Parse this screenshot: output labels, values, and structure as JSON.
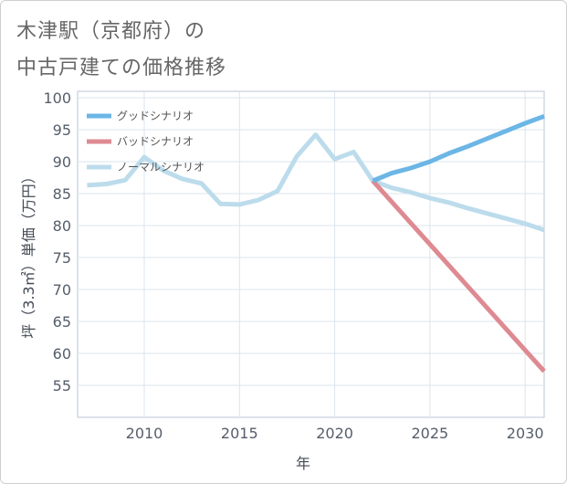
{
  "title_line1": "木津駅（京都府）の",
  "title_line2": "中古戸建ての価格推移",
  "chart_data": {
    "type": "line",
    "title": "木津駅（京都府）の中古戸建ての価格推移",
    "xlabel": "年",
    "ylabel": "坪（3.3㎡）単価（万円）",
    "xlim": [
      2006.5,
      2031
    ],
    "ylim": [
      50,
      101
    ],
    "xticks": [
      2010,
      2015,
      2020,
      2025,
      2030
    ],
    "yticks": [
      55,
      60,
      65,
      70,
      75,
      80,
      85,
      90,
      95,
      100
    ],
    "grid": true,
    "legend_position": "top-left",
    "series": [
      {
        "name": "グッドシナリオ",
        "color": "#6cb6e6",
        "x": [
          2022,
          2023,
          2024,
          2025,
          2026,
          2027,
          2028,
          2029,
          2030,
          2031
        ],
        "values": [
          87.0,
          88.2,
          89.0,
          90.0,
          91.3,
          92.4,
          93.6,
          94.8,
          96.0,
          97.1
        ]
      },
      {
        "name": "バッドシナリオ",
        "color": "#de8a92",
        "x": [
          2022,
          2031
        ],
        "values": [
          87.0,
          57.2
        ]
      },
      {
        "name": "ノーマルシナリオ",
        "color": "#bcdcec",
        "x": [
          2007,
          2008,
          2009,
          2010,
          2011,
          2012,
          2013,
          2014,
          2015,
          2016,
          2017,
          2018,
          2019,
          2020,
          2021,
          2022,
          2023,
          2024,
          2025,
          2026,
          2027,
          2028,
          2029,
          2030,
          2031
        ],
        "values": [
          86.3,
          86.5,
          87.1,
          90.7,
          88.6,
          87.3,
          86.6,
          83.4,
          83.3,
          84.0,
          85.4,
          90.8,
          94.2,
          90.4,
          91.5,
          87.0,
          85.9,
          85.2,
          84.3,
          83.6,
          82.7,
          81.9,
          81.1,
          80.3,
          79.3
        ]
      }
    ]
  }
}
